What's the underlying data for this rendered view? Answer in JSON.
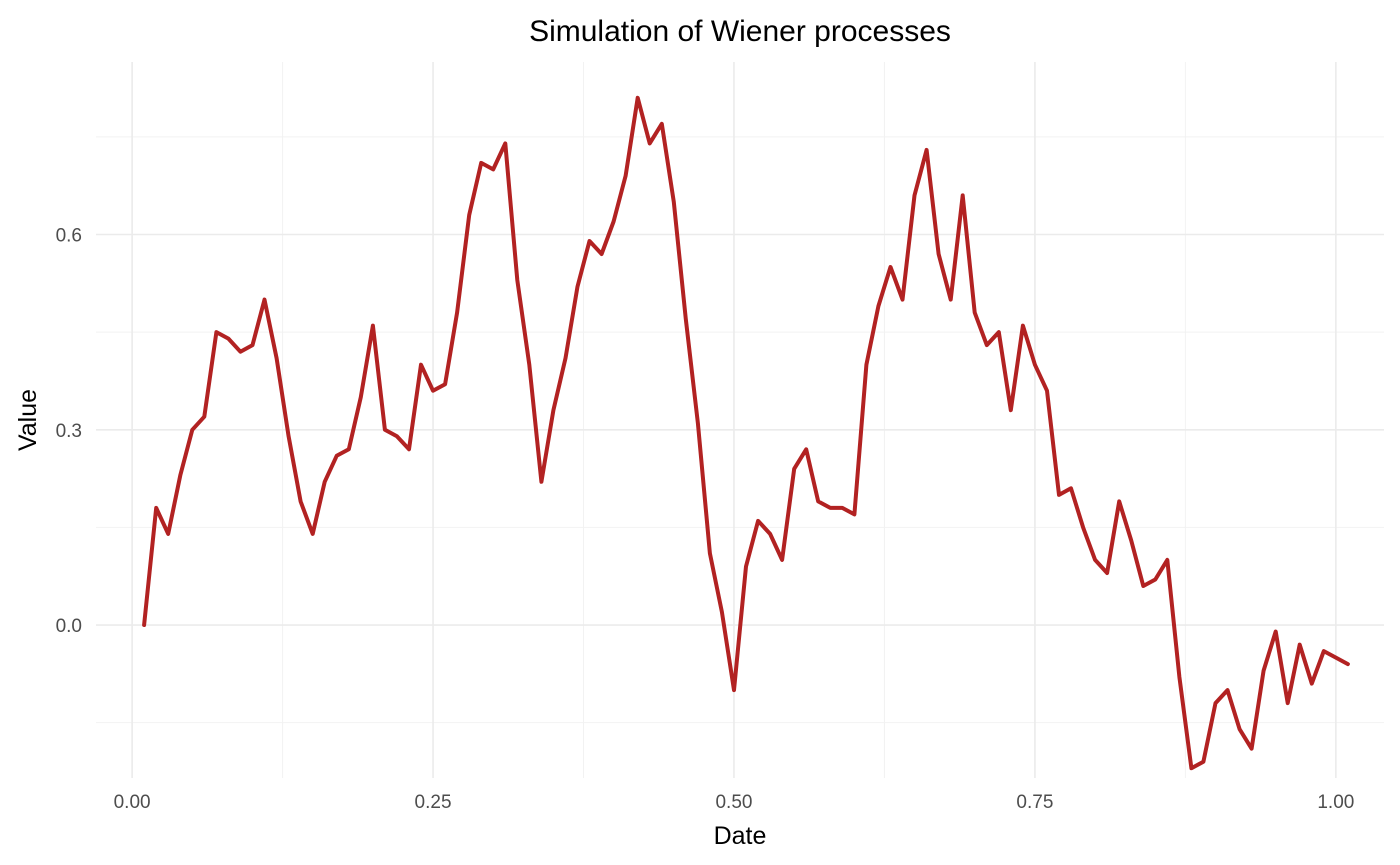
{
  "chart_data": {
    "type": "line",
    "title": "Simulation of Wiener processes",
    "xlabel": "Date",
    "ylabel": "Value",
    "xlim": [
      -0.03,
      1.04
    ],
    "ylim": [
      -0.235,
      0.865
    ],
    "x_ticks": [
      0.0,
      0.25,
      0.5,
      0.75,
      1.0
    ],
    "x_tick_labels": [
      "0.00",
      "0.25",
      "0.50",
      "0.75",
      "1.00"
    ],
    "y_ticks": [
      0.0,
      0.3,
      0.6
    ],
    "y_tick_labels": [
      "0.0",
      "0.3",
      "0.6"
    ],
    "x_minor_ticks": [
      0.125,
      0.375,
      0.625,
      0.875
    ],
    "y_minor_ticks": [
      -0.15,
      0.15,
      0.45,
      0.75
    ],
    "grid": true,
    "legend": "none",
    "series": [
      {
        "color": "#b22222",
        "x": [
          0.01,
          0.02,
          0.03,
          0.04,
          0.05,
          0.06,
          0.07,
          0.08,
          0.09,
          0.1,
          0.11,
          0.12,
          0.13,
          0.14,
          0.15,
          0.16,
          0.17,
          0.18,
          0.19,
          0.2,
          0.21,
          0.22,
          0.23,
          0.24,
          0.25,
          0.26,
          0.27,
          0.28,
          0.29,
          0.3,
          0.31,
          0.32,
          0.33,
          0.34,
          0.35,
          0.36,
          0.37,
          0.38,
          0.39,
          0.4,
          0.41,
          0.42,
          0.43,
          0.44,
          0.45,
          0.46,
          0.47,
          0.48,
          0.49,
          0.5,
          0.51,
          0.52,
          0.53,
          0.54,
          0.55,
          0.56,
          0.57,
          0.58,
          0.59,
          0.6,
          0.61,
          0.62,
          0.63,
          0.64,
          0.65,
          0.66,
          0.67,
          0.68,
          0.69,
          0.7,
          0.71,
          0.72,
          0.73,
          0.74,
          0.75,
          0.76,
          0.77,
          0.78,
          0.79,
          0.8,
          0.81,
          0.82,
          0.83,
          0.84,
          0.85,
          0.86,
          0.87,
          0.88,
          0.89,
          0.9,
          0.91,
          0.92,
          0.93,
          0.94,
          0.95,
          0.96,
          0.97,
          0.98,
          0.99,
          1.0,
          1.01
        ],
        "values": [
          0.0,
          0.18,
          0.14,
          0.23,
          0.3,
          0.32,
          0.45,
          0.44,
          0.42,
          0.43,
          0.5,
          0.41,
          0.29,
          0.19,
          0.14,
          0.22,
          0.26,
          0.27,
          0.35,
          0.46,
          0.3,
          0.29,
          0.27,
          0.4,
          0.36,
          0.37,
          0.48,
          0.63,
          0.71,
          0.7,
          0.74,
          0.53,
          0.4,
          0.22,
          0.33,
          0.41,
          0.52,
          0.59,
          0.57,
          0.62,
          0.69,
          0.81,
          0.74,
          0.77,
          0.65,
          0.47,
          0.31,
          0.11,
          0.02,
          -0.1,
          0.09,
          0.16,
          0.14,
          0.1,
          0.24,
          0.27,
          0.19,
          0.18,
          0.18,
          0.17,
          0.4,
          0.49,
          0.55,
          0.5,
          0.66,
          0.73,
          0.57,
          0.5,
          0.66,
          0.48,
          0.43,
          0.45,
          0.33,
          0.46,
          0.4,
          0.36,
          0.2,
          0.21,
          0.15,
          0.1,
          0.08,
          0.19,
          0.13,
          0.06,
          0.07,
          0.1,
          -0.08,
          -0.22,
          -0.21,
          -0.12,
          -0.1,
          -0.16,
          -0.19,
          -0.07,
          -0.01,
          -0.12,
          -0.03,
          -0.09,
          -0.04,
          -0.05,
          -0.06
        ]
      }
    ]
  }
}
